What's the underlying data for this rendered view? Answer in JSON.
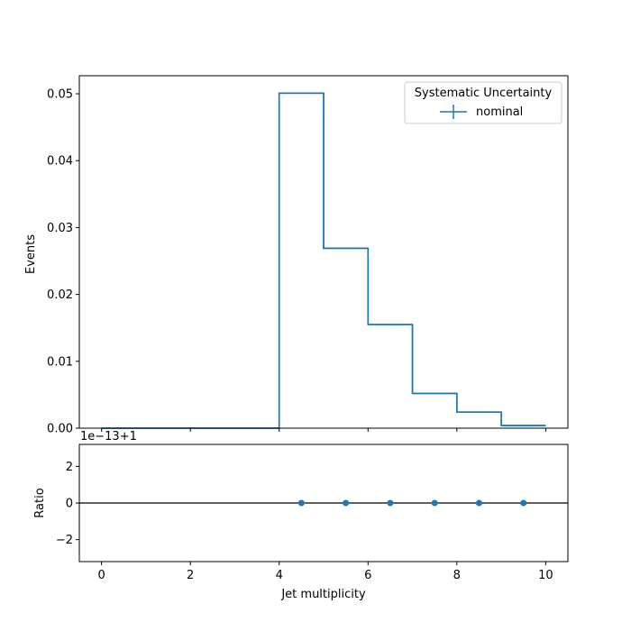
{
  "chart_data": [
    {
      "type": "line",
      "drawstyle": "steps",
      "ylabel": "Events",
      "xlim": [
        -0.5,
        10.5
      ],
      "ylim": [
        0,
        0.0527
      ],
      "yticks": [
        0.0,
        0.01,
        0.02,
        0.03,
        0.04,
        0.05
      ],
      "ytick_labels": [
        "0.00",
        "0.01",
        "0.02",
        "0.03",
        "0.04",
        "0.05"
      ],
      "xticks": [
        0,
        2,
        4,
        6,
        8,
        10
      ],
      "grid": false,
      "legend": {
        "title": "Systematic Uncertainty",
        "placement": "top-right",
        "entries": [
          "nominal"
        ]
      },
      "series": [
        {
          "name": "nominal",
          "color": "#1f77b4",
          "bin_edges": [
            0,
            1,
            2,
            3,
            4,
            5,
            6,
            7,
            8,
            9,
            10
          ],
          "values": [
            0,
            0,
            0,
            0,
            0.0501,
            0.0269,
            0.0155,
            0.0052,
            0.0024,
            0.0004
          ]
        }
      ]
    },
    {
      "type": "scatter",
      "ylabel": "Ratio",
      "xlabel": "Jet multiplicity",
      "offset_text": "1e−13+1",
      "xlim": [
        -0.5,
        10.5
      ],
      "ylim": [
        -3.2,
        3.2
      ],
      "yticks": [
        -2,
        0,
        2
      ],
      "ytick_labels": [
        "−2",
        "0",
        "2"
      ],
      "xticks": [
        0,
        2,
        4,
        6,
        8,
        10
      ],
      "xtick_labels": [
        "0",
        "2",
        "4",
        "6",
        "8",
        "10"
      ],
      "reference_line": 0,
      "series": [
        {
          "color": "#1f77b4",
          "x": [
            4.5,
            5.5,
            6.5,
            7.5,
            8.5,
            9.5
          ],
          "y": [
            0,
            0,
            0,
            0,
            0,
            0
          ]
        }
      ]
    }
  ]
}
